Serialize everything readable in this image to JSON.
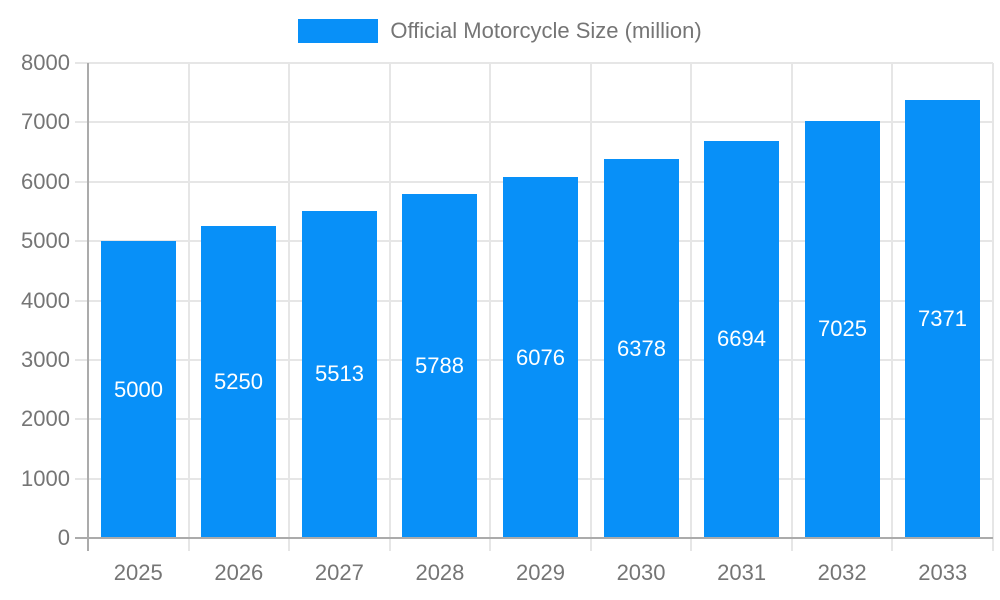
{
  "chart_data": {
    "type": "bar",
    "title": "Official Motorcycle Size (million)",
    "categories": [
      "2025",
      "2026",
      "2027",
      "2028",
      "2029",
      "2030",
      "2031",
      "2032",
      "2033"
    ],
    "values": [
      5000,
      5250,
      5513,
      5788,
      6076,
      6378,
      6694,
      7025,
      7371
    ],
    "xlabel": "",
    "ylabel": "",
    "ylim": [
      0,
      8000
    ],
    "ytick_step": 1000,
    "ytick_labels": [
      "0",
      "1000",
      "2000",
      "3000",
      "4000",
      "5000",
      "6000",
      "7000",
      "8000"
    ],
    "grid": true,
    "legend_position": "top-center",
    "bar_labels_inside": true,
    "bar_color": "#0890F8",
    "bar_label_color": "#FFFFFF",
    "axis_text_color": "#757575",
    "axis_line_color": "#ABABAB",
    "gridline_color": "#E6E6E6",
    "background_color": "#FFFFFF"
  }
}
